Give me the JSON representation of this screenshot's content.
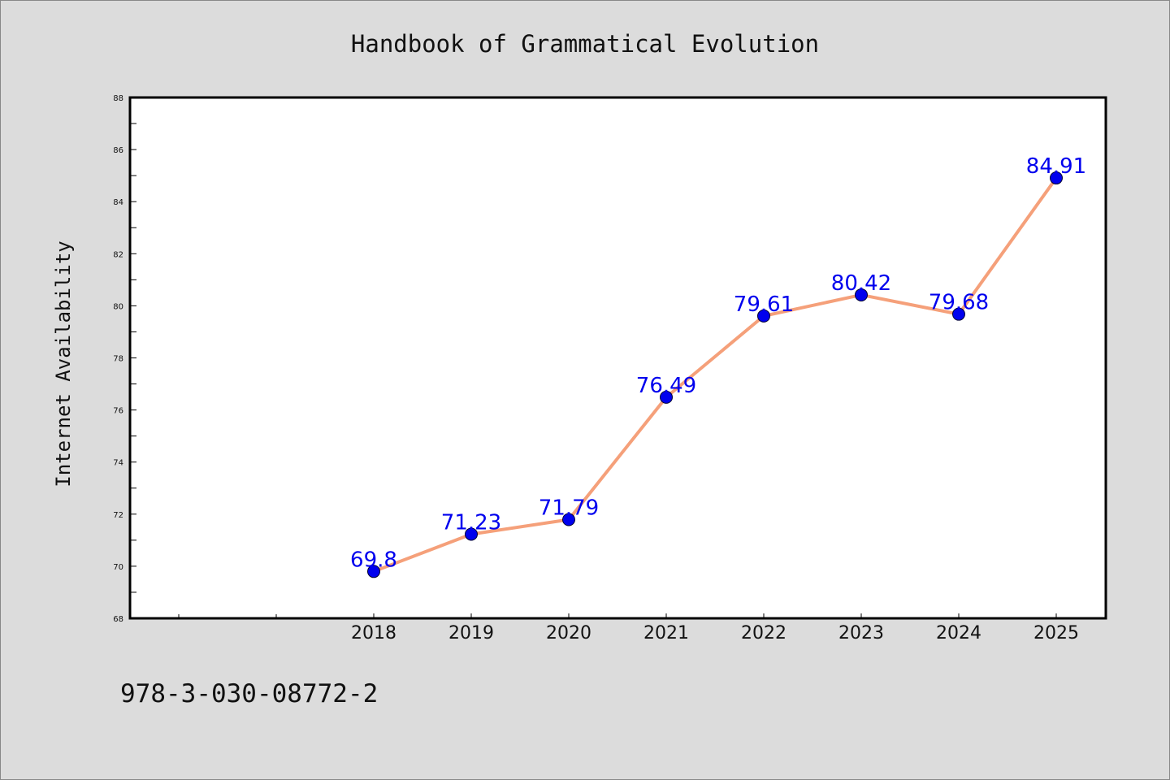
{
  "chart_data": {
    "type": "line",
    "title": "Handbook of Grammatical Evolution",
    "ylabel": "Internet Availability",
    "xlabel": "",
    "categories": [
      "2018",
      "2019",
      "2020",
      "2021",
      "2022",
      "2023",
      "2024",
      "2025"
    ],
    "series": [
      {
        "values": [
          69.8,
          71.23,
          71.79,
          76.49,
          79.61,
          80.42,
          79.68,
          84.91
        ],
        "data_labels": [
          "69.8",
          "71.23",
          "71.79",
          "76.49",
          "79.61",
          "80.42",
          "79.68",
          "84.91"
        ]
      }
    ],
    "ylim": [
      68,
      88
    ],
    "yticks": [
      "68",
      "70",
      "72",
      "74",
      "76",
      "78",
      "80",
      "82",
      "84",
      "86",
      "88"
    ],
    "grid": false,
    "legend": "none",
    "line_color": "#f5a07a",
    "marker_color": "#0000ee",
    "label_color": "#0000ee"
  },
  "footer": {
    "isbn": "978-3-030-08772-2"
  }
}
